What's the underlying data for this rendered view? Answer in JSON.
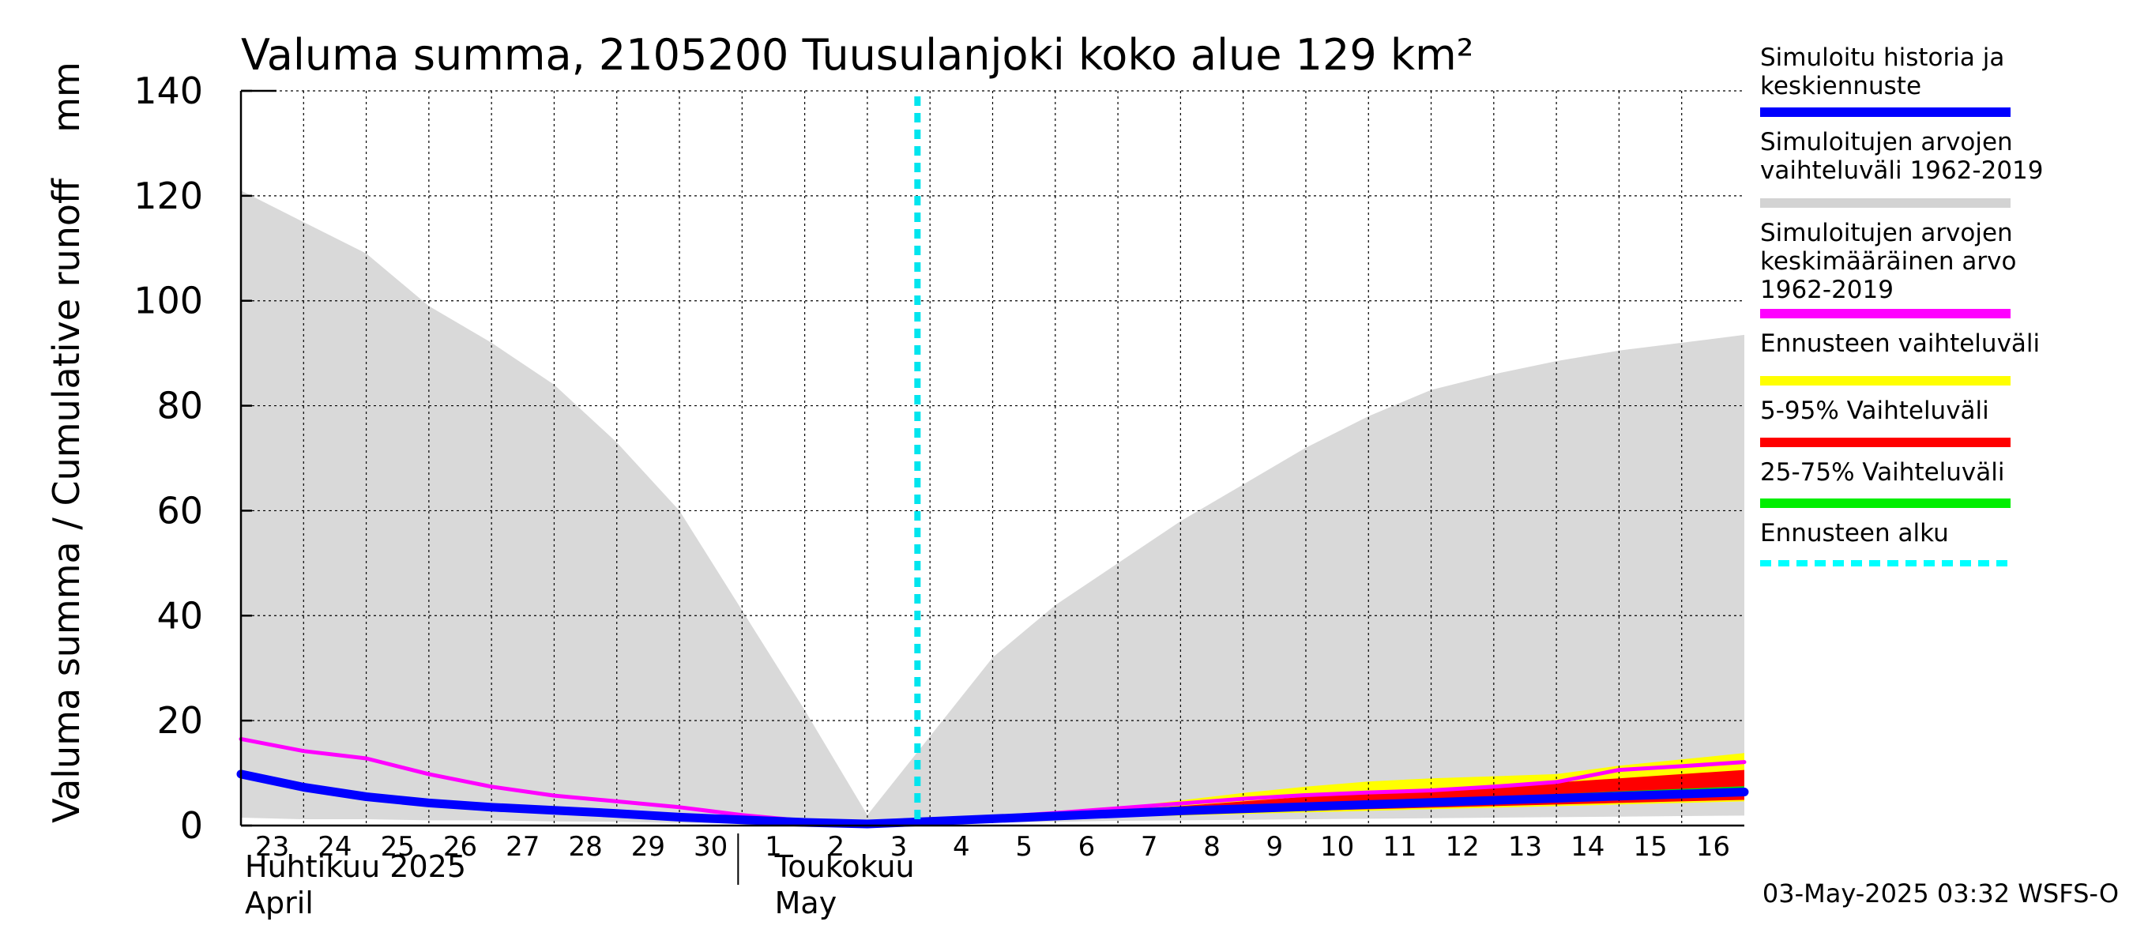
{
  "chart_data": {
    "type": "area",
    "title": "Valuma summa, 2105200 Tuusulanjoki koko alue 129 km²",
    "ylabel": "Valuma summa / Cumulative runoff    mm",
    "ylim": [
      0,
      140
    ],
    "yticks": [
      0,
      20,
      40,
      60,
      80,
      100,
      120,
      140
    ],
    "grid": true,
    "legend_position": "right",
    "x_tick_labels": [
      "23",
      "24",
      "25",
      "26",
      "27",
      "28",
      "29",
      "30",
      "1",
      "2",
      "3",
      "4",
      "5",
      "6",
      "7",
      "8",
      "9",
      "10",
      "11",
      "12",
      "13",
      "14",
      "15",
      "16"
    ],
    "x_dates": [
      "2025-04-23",
      "2025-04-24",
      "2025-04-25",
      "2025-04-26",
      "2025-04-27",
      "2025-04-28",
      "2025-04-29",
      "2025-04-30",
      "2025-05-01",
      "2025-05-02",
      "2025-05-03",
      "2025-05-04",
      "2025-05-05",
      "2025-05-06",
      "2025-05-07",
      "2025-05-08",
      "2025-05-09",
      "2025-05-10",
      "2025-05-11",
      "2025-05-12",
      "2025-05-13",
      "2025-05-14",
      "2025-05-15",
      "2025-05-16",
      "2025-05-17"
    ],
    "xlim": [
      "2025-04-23",
      "2025-05-17"
    ],
    "months": [
      {
        "fi": "Huhtikuu  2025",
        "en": "April"
      },
      {
        "fi": "Toukokuu",
        "en": "May"
      }
    ],
    "forecast_start": "2025-05-03",
    "hist_range": {
      "color": "#d9d9d9",
      "x": [
        "2025-04-23",
        "2025-04-24",
        "2025-04-25",
        "2025-04-26",
        "2025-04-27",
        "2025-04-28",
        "2025-04-29",
        "2025-04-30",
        "2025-05-01",
        "2025-05-02",
        "2025-05-03",
        "2025-05-04",
        "2025-05-05",
        "2025-05-06",
        "2025-05-07",
        "2025-05-08",
        "2025-05-09",
        "2025-05-10",
        "2025-05-11",
        "2025-05-12",
        "2025-05-13",
        "2025-05-14",
        "2025-05-15",
        "2025-05-16",
        "2025-05-17"
      ],
      "upper": [
        121,
        115,
        109,
        99,
        92,
        84,
        73,
        60,
        41,
        22,
        2,
        17,
        32,
        42,
        50,
        58,
        65,
        72,
        78,
        83,
        86,
        88.5,
        90.5,
        92,
        93.5
      ],
      "lower": [
        1.5,
        1.2,
        1.2,
        1.0,
        1.0,
        0.8,
        0.7,
        0.5,
        0.4,
        0.3,
        0.2,
        0.3,
        0.5,
        0.7,
        0.9,
        1.0,
        1.1,
        1.2,
        1.3,
        1.4,
        1.5,
        1.6,
        1.7,
        1.8,
        1.9
      ]
    },
    "series": [
      {
        "name": "Simuloitu historia ja keskiennuste",
        "color": "#0000ff",
        "width": 11,
        "x": [
          "2025-04-23",
          "2025-04-24",
          "2025-04-25",
          "2025-04-26",
          "2025-04-27",
          "2025-04-28",
          "2025-04-29",
          "2025-04-30",
          "2025-05-01",
          "2025-05-02",
          "2025-05-03",
          "2025-05-04",
          "2025-05-05",
          "2025-05-06",
          "2025-05-07",
          "2025-05-08",
          "2025-05-09",
          "2025-05-10",
          "2025-05-11",
          "2025-05-12",
          "2025-05-13",
          "2025-05-14",
          "2025-05-15",
          "2025-05-16",
          "2025-05-17"
        ],
        "values": [
          9.8,
          7.3,
          5.5,
          4.3,
          3.5,
          2.9,
          2.3,
          1.6,
          1.1,
          0.6,
          0.3,
          0.8,
          1.3,
          1.8,
          2.3,
          2.8,
          3.2,
          3.6,
          4.0,
          4.4,
          4.8,
          5.2,
          5.6,
          6.0,
          6.4
        ]
      },
      {
        "name": "Simuloitujen arvojen keskimääräinen arvo 1962-2019",
        "color": "#ff00ff",
        "width": 5,
        "x": [
          "2025-04-23",
          "2025-04-24",
          "2025-04-25",
          "2025-04-26",
          "2025-04-27",
          "2025-04-28",
          "2025-04-29",
          "2025-04-30",
          "2025-05-01",
          "2025-05-02",
          "2025-05-03",
          "2025-05-04",
          "2025-05-05",
          "2025-05-06",
          "2025-05-07",
          "2025-05-08",
          "2025-05-09",
          "2025-05-10",
          "2025-05-11",
          "2025-05-12",
          "2025-05-13",
          "2025-05-14",
          "2025-05-15",
          "2025-05-16",
          "2025-05-17"
        ],
        "values": [
          16.5,
          14.2,
          12.8,
          9.8,
          7.4,
          5.7,
          4.6,
          3.5,
          2.0,
          0.9,
          0.2,
          0.7,
          1.6,
          2.4,
          3.3,
          4.2,
          5.1,
          5.8,
          6.3,
          6.7,
          7.4,
          8.3,
          10.6,
          11.3,
          12.1
        ]
      }
    ],
    "forecast_bands": {
      "x": [
        "2025-05-03",
        "2025-05-04",
        "2025-05-05",
        "2025-05-06",
        "2025-05-07",
        "2025-05-08",
        "2025-05-09",
        "2025-05-10",
        "2025-05-11",
        "2025-05-12",
        "2025-05-13",
        "2025-05-14",
        "2025-05-15",
        "2025-05-16",
        "2025-05-17"
      ],
      "ensemble_range": {
        "name": "Ennusteen vaihteluväli",
        "color": "#ffff00",
        "upper": [
          0.3,
          0.9,
          1.6,
          2.4,
          3.4,
          4.8,
          6.2,
          7.4,
          8.4,
          9.0,
          9.4,
          9.8,
          11.4,
          12.6,
          13.8
        ],
        "lower": [
          0.3,
          0.7,
          1.0,
          1.3,
          1.6,
          1.9,
          2.2,
          2.5,
          2.8,
          3.1,
          3.4,
          3.7,
          4.0,
          4.3,
          4.6
        ]
      },
      "p5_95": {
        "name": "5-95% Vaihteluväli",
        "color": "#ff0000",
        "upper": [
          0.3,
          0.85,
          1.45,
          2.1,
          2.9,
          3.7,
          4.6,
          5.5,
          6.2,
          6.8,
          7.5,
          8.2,
          9.0,
          9.8,
          10.6
        ],
        "lower": [
          0.3,
          0.7,
          1.1,
          1.45,
          1.8,
          2.15,
          2.5,
          2.8,
          3.1,
          3.4,
          3.7,
          4.0,
          4.3,
          4.6,
          4.9
        ]
      },
      "p25_75": {
        "name": "25-75% Vaihteluväli",
        "color": "#00e000",
        "upper": [
          0.3,
          0.82,
          1.35,
          1.9,
          2.45,
          3.0,
          3.5,
          4.0,
          4.5,
          5.0,
          5.5,
          6.0,
          6.5,
          7.0,
          7.5
        ],
        "lower": [
          0.3,
          0.75,
          1.2,
          1.65,
          2.1,
          2.55,
          2.95,
          3.35,
          3.75,
          4.15,
          4.55,
          4.95,
          5.35,
          5.75,
          6.1
        ]
      }
    },
    "legend": [
      {
        "label_lines": [
          "Simuloitu historia ja",
          "keskiennuste"
        ],
        "color": "#0000ff",
        "style": "solid"
      },
      {
        "label_lines": [
          "Simuloitujen arvojen",
          "vaihteluväli 1962-2019"
        ],
        "color": "#d3d3d3",
        "style": "solid"
      },
      {
        "label_lines": [
          "Simuloitujen arvojen",
          "keskimääräinen arvo",
          "   1962-2019"
        ],
        "color": "#ff00ff",
        "style": "solid"
      },
      {
        "label_lines": [
          "Ennusteen vaihteluväli"
        ],
        "color": "#ffff00",
        "style": "solid"
      },
      {
        "label_lines": [
          "5-95% Vaihteluväli"
        ],
        "color": "#ff0000",
        "style": "solid"
      },
      {
        "label_lines": [
          "25-75% Vaihteluväli"
        ],
        "color": "#00ee00",
        "style": "solid"
      },
      {
        "label_lines": [
          "Ennusteen alku"
        ],
        "color": "#00ffff",
        "style": "dotted"
      }
    ],
    "timestamp": "03-May-2025 03:32 WSFS-O"
  }
}
